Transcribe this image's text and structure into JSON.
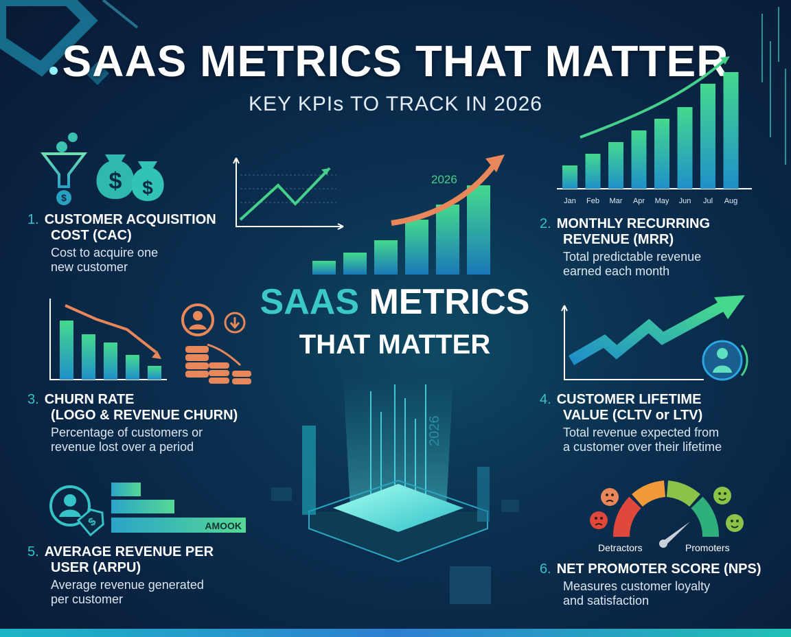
{
  "header": {
    "title": "SAAS METRICS THAT MATTER",
    "subtitle": "KEY KPIs TO TRACK IN 2026"
  },
  "center": {
    "title_accent": "SAAS",
    "title_rest": " METRICS",
    "title_line2": "THAT MATTER",
    "year_label": "2026",
    "year_label_vertical": "2026"
  },
  "metrics": [
    {
      "number": "1.",
      "title_line1": "CUSTOMER ACQUISITION",
      "title_line2": "COST (CAC)",
      "desc_line1": "Cost to acquire one",
      "desc_line2": "new customer"
    },
    {
      "number": "2.",
      "title_line1": "MONTHLY RECURRING",
      "title_line2": "REVENUE (MRR)",
      "desc_line1": "Total predictable revenue",
      "desc_line2": "earned each month"
    },
    {
      "number": "3.",
      "title_line1": "CHURN RATE",
      "title_line2": "(LOGO & REVENUE CHURN)",
      "desc_line1": "Percentage of customers or",
      "desc_line2": "revenue lost over a period"
    },
    {
      "number": "4.",
      "title_line1": "CUSTOMER LIFETIME",
      "title_line2": "VALUE (CLTV or LTV)",
      "desc_line1": "Total revenue expected from",
      "desc_line2": "a customer over their lifetime"
    },
    {
      "number": "5.",
      "title_line1": "AVERAGE REVENUE PER",
      "title_line2": "USER (ARPU)",
      "desc_line1": "Average revenue generated",
      "desc_line2": "per customer"
    },
    {
      "number": "6.",
      "title_line1": "NET PROMOTER SCORE (NPS)",
      "title_line2": "",
      "desc_line1": "Measures customer loyalty",
      "desc_line2": "and satisfaction"
    }
  ],
  "mrr_chart": {
    "months": [
      "Jan",
      "Feb",
      "Mar",
      "Apr",
      "May",
      "Jun",
      "Jul",
      "Aug"
    ],
    "values": [
      2,
      3,
      4,
      5,
      6,
      7,
      9,
      10
    ]
  },
  "arpu_chip": "AMOOK",
  "nps_gauge": {
    "left_label": "Detractors",
    "right_label": "Promoters"
  },
  "icons": [
    "funnel-icon",
    "money-bag-icon",
    "user-icon",
    "price-tag-icon",
    "coins-icon",
    "smiley-icon"
  ],
  "colors": {
    "accent": "#36c3c8",
    "orange": "#e8875a",
    "green": "#46d08a"
  }
}
